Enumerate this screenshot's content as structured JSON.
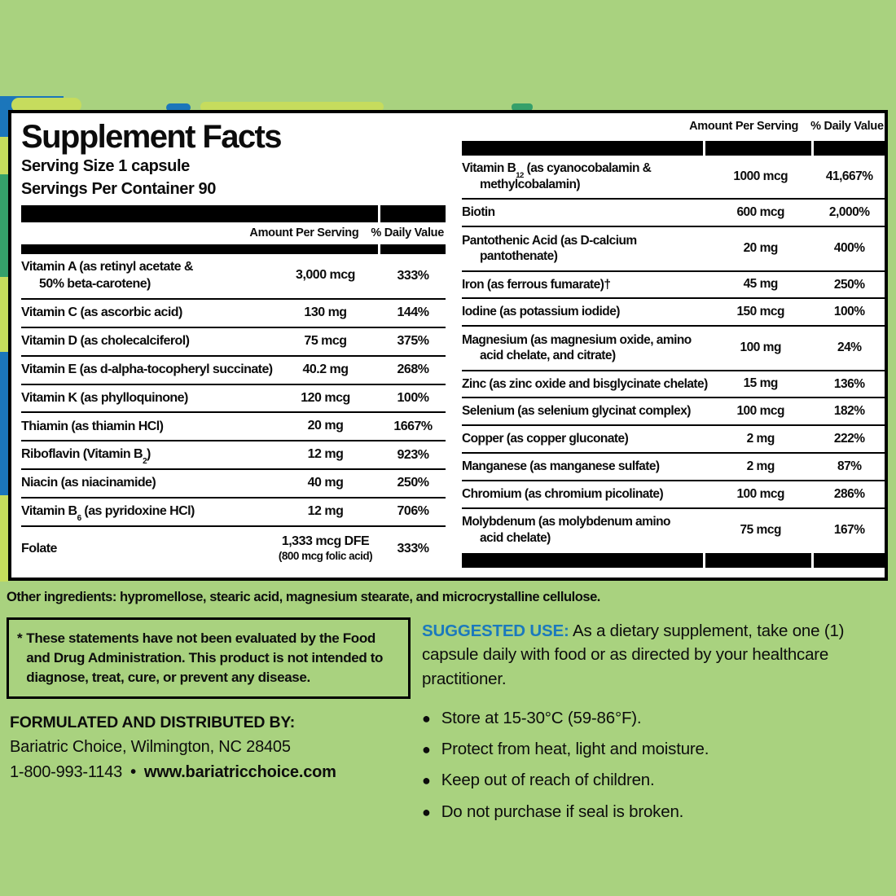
{
  "colors": {
    "background_green": "#a9d27f",
    "accent_blue": "#1b79bd",
    "decor_blue": "#1b76bb",
    "decor_yellow_green": "#c6dc5d",
    "decor_teal": "#35a06a",
    "panel_white": "#ffffff",
    "text_black": "#0c0c0c"
  },
  "panel": {
    "title": "Supplement Facts",
    "serving_size": "Serving Size 1 capsule",
    "servings_per_container": "Servings Per Container 90",
    "column_headers": {
      "amount": "Amount Per Serving",
      "daily_value": "% Daily Value"
    },
    "left_rows": [
      {
        "label": "Vitamin A (as retinyl acetate &\n50% beta-carotene)",
        "amount": "3,000 mcg",
        "dv": "333%"
      },
      {
        "label": "Vitamin C (as ascorbic acid)",
        "amount": "130 mg",
        "dv": "144%"
      },
      {
        "label": "Vitamin D (as cholecalciferol)",
        "amount": "75 mcg",
        "dv": "375%"
      },
      {
        "label": "Vitamin E (as d-alpha-tocopheryl succinate)",
        "amount": "40.2 mg",
        "dv": "268%"
      },
      {
        "label": "Vitamin K (as phylloquinone)",
        "amount": "120 mcg",
        "dv": "100%"
      },
      {
        "label": "Thiamin (as thiamin HCl)",
        "amount": "20 mg",
        "dv": "1667%"
      },
      {
        "label": "Riboflavin (Vitamin B~2~)",
        "amount": "12 mg",
        "dv": "923%"
      },
      {
        "label": "Niacin (as niacinamide)",
        "amount": "40 mg",
        "dv": "250%"
      },
      {
        "label": "Vitamin B~6~ (as pyridoxine HCl)",
        "amount": "12 mg",
        "dv": "706%"
      },
      {
        "label": "Folate",
        "amount": "1,333 mcg DFE\n(800 mcg folic acid)",
        "dv": "333%"
      }
    ],
    "right_rows": [
      {
        "label": "Vitamin B~12~ (as cyanocobalamin &\nmethylcobalamin)",
        "amount": "1000 mcg",
        "dv": "41,667%"
      },
      {
        "label": "Biotin",
        "amount": "600 mcg",
        "dv": "2,000%"
      },
      {
        "label": "Pantothenic Acid (as D-calcium\npantothenate)",
        "amount": "20 mg",
        "dv": "400%"
      },
      {
        "label": "Iron (as ferrous fumarate)†",
        "amount": "45 mg",
        "dv": "250%"
      },
      {
        "label": "Iodine (as potassium iodide)",
        "amount": "150 mcg",
        "dv": "100%"
      },
      {
        "label": "Magnesium (as magnesium oxide, amino\nacid chelate, and citrate)",
        "amount": "100 mg",
        "dv": "24%"
      },
      {
        "label": "Zinc (as zinc oxide and bisglycinate chelate)",
        "amount": "15 mg",
        "dv": "136%"
      },
      {
        "label": "Selenium (as selenium glycinat complex)",
        "amount": "100 mcg",
        "dv": "182%"
      },
      {
        "label": "Copper (as copper gluconate)",
        "amount": "2 mg",
        "dv": "222%"
      },
      {
        "label": "Manganese (as manganese sulfate)",
        "amount": "2 mg",
        "dv": "87%"
      },
      {
        "label": "Chromium (as chromium picolinate)",
        "amount": "100 mcg",
        "dv": "286%"
      },
      {
        "label": "Molybdenum (as molybdenum amino\nacid chelate)",
        "amount": "75 mcg",
        "dv": "167%"
      }
    ]
  },
  "other_ingredients": "Other ingredients: hypromellose, stearic acid, magnesium stearate, and microcrystalline cellulose.",
  "disclaimer": {
    "asterisk": "*",
    "text": "These statements have not been evaluated by the Food and Drug Administration. This product is not intended to diagnose, treat, cure, or prevent any disease."
  },
  "distributor": {
    "heading": "FORMULATED AND DISTRIBUTED BY:",
    "address": "Bariatric Choice, Wilmington, NC 28405",
    "phone": "1-800-993-1143",
    "separator": "•",
    "website": "www.bariatricchoice.com"
  },
  "suggested_use": {
    "heading": "SUGGESTED USE:",
    "text": "As a dietary supplement, take one (1) capsule daily with food or as directed by your healthcare practitioner.",
    "bullets": [
      "Store at 15-30°C (59-86°F).",
      "Protect from heat, light and moisture.",
      "Keep out of reach of children.",
      "Do not purchase if seal is broken."
    ]
  }
}
